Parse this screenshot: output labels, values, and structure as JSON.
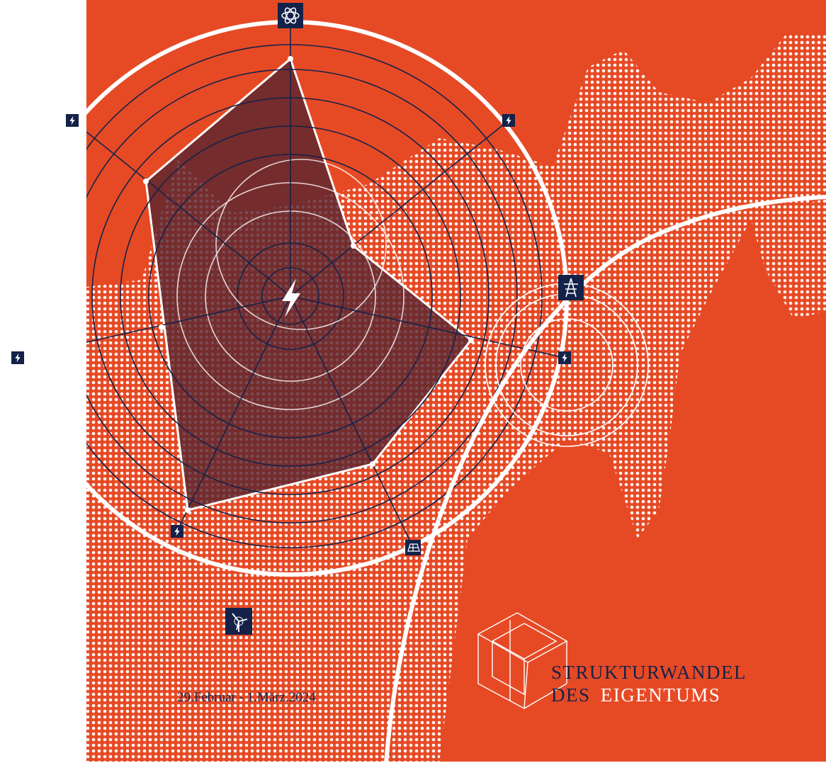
{
  "poster": {
    "title_line_1": "STRUKTURWANDEL",
    "title_line_2_prefix": "DES",
    "title_line_2_suffix": "EIGENTUMS",
    "date": "29.Februar - 1.März.2024"
  }
}
